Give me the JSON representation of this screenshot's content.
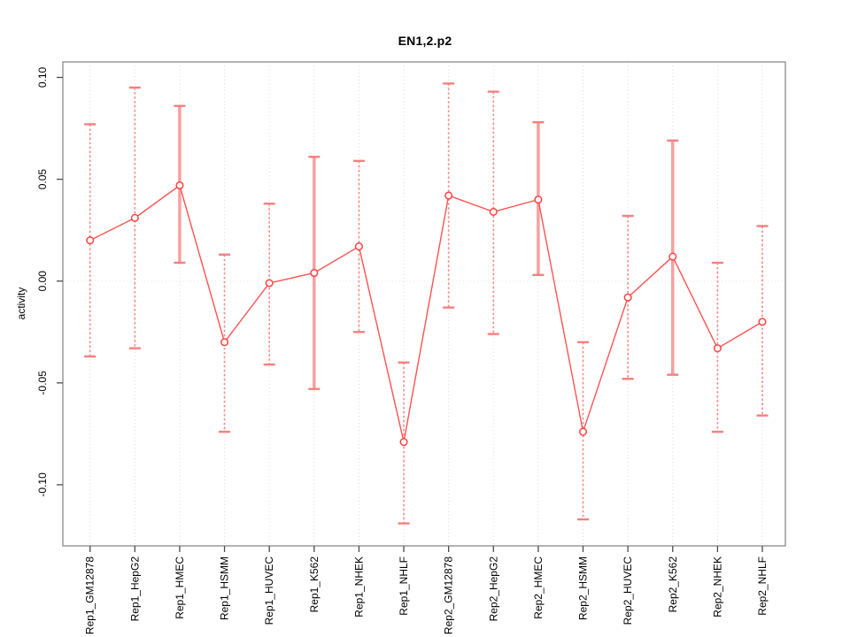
{
  "window": {
    "title": "EN1,2.p2"
  },
  "chart_data": {
    "type": "line",
    "title": "EN1,2.p2",
    "xlabel": "",
    "ylabel": "activity",
    "categories": [
      "Rep1_GM12878",
      "Rep1_HepG2",
      "Rep1_HMEC",
      "Rep1_HSMM",
      "Rep1_HUVEC",
      "Rep1_K562",
      "Rep1_NHEK",
      "Rep1_NHLF",
      "Rep2_GM12878",
      "Rep2_HepG2",
      "Rep2_HMEC",
      "Rep2_HSMM",
      "Rep2_HUVEC",
      "Rep2_K562",
      "Rep2_NHEK",
      "Rep2_NHLF"
    ],
    "series": [
      {
        "name": "activity",
        "values": [
          0.02,
          0.031,
          0.047,
          -0.03,
          -0.001,
          0.004,
          0.017,
          -0.079,
          0.042,
          0.034,
          0.04,
          -0.074,
          -0.008,
          0.012,
          -0.033,
          -0.02
        ],
        "error_low": [
          -0.037,
          -0.033,
          0.009,
          -0.074,
          -0.041,
          -0.053,
          -0.025,
          -0.119,
          -0.013,
          -0.026,
          0.003,
          -0.117,
          -0.048,
          -0.046,
          -0.074,
          -0.066
        ],
        "error_high": [
          0.077,
          0.095,
          0.086,
          0.013,
          0.038,
          0.061,
          0.059,
          -0.04,
          0.097,
          0.093,
          0.078,
          -0.03,
          0.032,
          0.069,
          0.009,
          0.027
        ]
      }
    ],
    "thick_error_bar_categories": [
      "Rep1_HMEC",
      "Rep1_K562",
      "Rep2_HMEC",
      "Rep2_K562"
    ],
    "ylim": [
      -0.13,
      0.108
    ],
    "yticks": [
      -0.1,
      -0.05,
      0.0,
      0.05,
      0.1
    ],
    "ytick_labels": [
      "-0.10",
      "-0.05",
      "0.00",
      "0.05",
      "0.10"
    ],
    "grid": {
      "vertical_at_categories": true,
      "horizontal_at_zero": true
    },
    "legend": {
      "visible": false
    },
    "marker": "open-circle"
  },
  "colors": {
    "series_line": "#ff5252",
    "marker_stroke": "#ff4343",
    "marker_fill": "#ffffff",
    "error_bar_thin": "#f89090",
    "error_bar_thick": "#f9a0a0",
    "error_bar_cap": "#f87e7e",
    "grid_line": "#dcdcdc",
    "zero_line": "#e6e6e6",
    "axis_box": "#8a8a8a",
    "tick": "#4d4d4d",
    "text": "#000000",
    "background": "#ffffff"
  }
}
